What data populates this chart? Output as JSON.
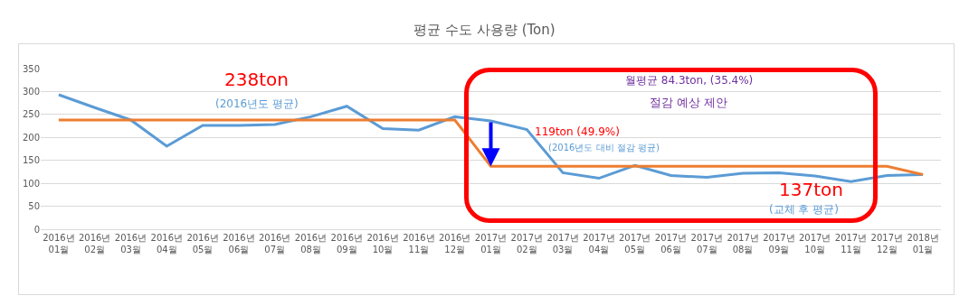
{
  "chart_data": {
    "type": "line",
    "title": "평균 수도 사용량 (Ton)",
    "categories": [
      "2016년\n01월",
      "2016년\n02월",
      "2016년\n03월",
      "2016년\n04월",
      "2016년\n05월",
      "2016년\n06월",
      "2016년\n07월",
      "2016년\n08월",
      "2016년\n09월",
      "2016년\n10월",
      "2016년\n11월",
      "2016년\n12월",
      "2017년\n01월",
      "2017년\n02월",
      "2017년\n03월",
      "2017년\n04월",
      "2017년\n05월",
      "2017년\n06월",
      "2017년\n07월",
      "2017년\n08월",
      "2017년\n09월",
      "2017년\n10월",
      "2017년\n11월",
      "2017년\n12월",
      "2018년\n01월"
    ],
    "series": [
      {
        "color": "#5b9bd5",
        "values": [
          293,
          265,
          238,
          181,
          226,
          226,
          228,
          245,
          268,
          219,
          216,
          245,
          236,
          217,
          123,
          111,
          139,
          117,
          113,
          122,
          123,
          116,
          104,
          117,
          119
        ]
      },
      {
        "color": "#ed7d31",
        "values": [
          238,
          238,
          238,
          238,
          238,
          238,
          238,
          238,
          238,
          238,
          238,
          238,
          137,
          137,
          137,
          137,
          137,
          137,
          137,
          137,
          137,
          137,
          137,
          137,
          119
        ]
      }
    ],
    "ylim": [
      0,
      350
    ],
    "yticks": [
      0,
      50,
      100,
      150,
      200,
      250,
      300,
      350
    ],
    "grid": "y",
    "legend": false,
    "marker": "none",
    "line_style": "solid",
    "annotations": [
      "238ton",
      "(2016년도 평균)",
      "월평균 84.3ton, (35.4%)",
      "절감 예상 제안",
      "119ton (49.9%)",
      "(2016년도 대비 절감 평균)",
      "137ton",
      "(교체 후 평균)"
    ]
  }
}
